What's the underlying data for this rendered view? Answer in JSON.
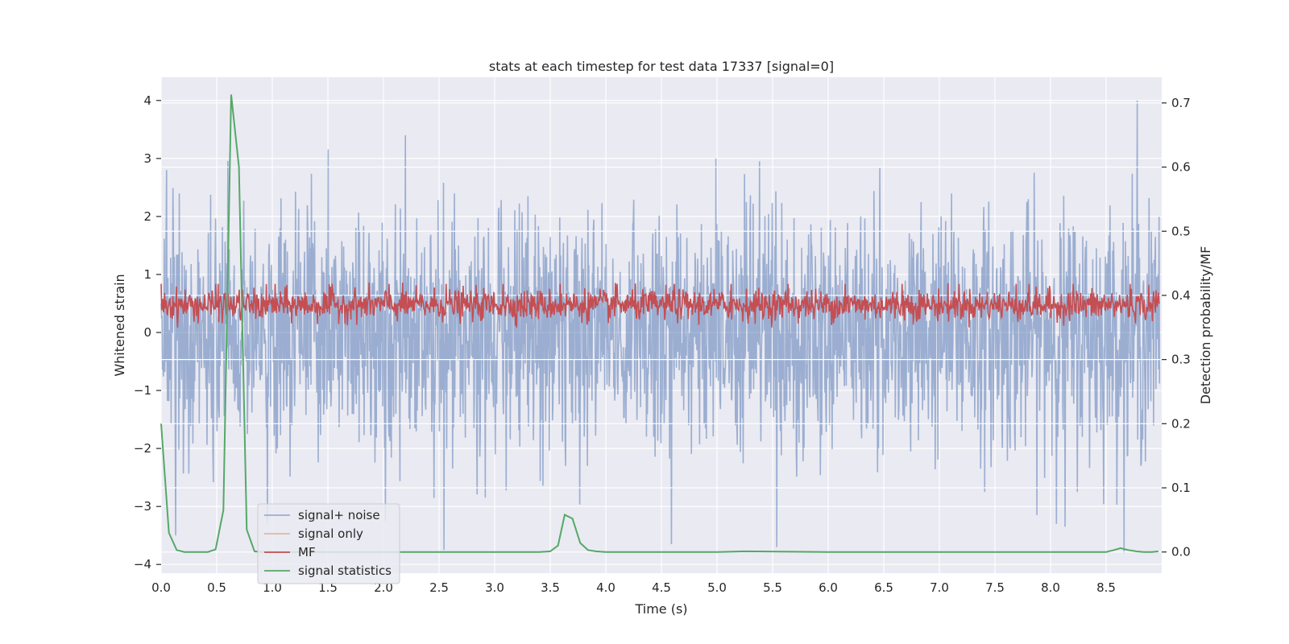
{
  "chart_data": {
    "type": "line",
    "title": "stats at each timestep for test data 17337 [signal=0]",
    "xlabel": "Time (s)",
    "ylabel": "Whitened strain",
    "y2label": "Detection probability/MF",
    "xlim": [
      0,
      9.0
    ],
    "ylim": [
      -4.15,
      4.4
    ],
    "y2lim": [
      -0.033,
      0.74
    ],
    "xticks": [
      0.0,
      0.5,
      1.0,
      1.5,
      2.0,
      2.5,
      3.0,
      3.5,
      4.0,
      4.5,
      5.0,
      5.5,
      6.0,
      6.5,
      7.0,
      7.5,
      8.0,
      8.5
    ],
    "xtick_labels": [
      "0.0",
      "0.5",
      "1.0",
      "1.5",
      "2.0",
      "2.5",
      "3.0",
      "3.5",
      "4.0",
      "4.5",
      "5.0",
      "5.5",
      "6.0",
      "6.5",
      "7.0",
      "7.5",
      "8.0",
      "8.5"
    ],
    "yticks": [
      4,
      3,
      2,
      1,
      0,
      -1,
      -2,
      -3,
      -4
    ],
    "ytick_labels": [
      "4",
      "3",
      "2",
      "1",
      "0",
      "−1",
      "−2",
      "−3",
      "−4"
    ],
    "y2ticks": [
      0.7,
      0.6,
      0.5,
      0.4,
      0.3,
      0.2,
      0.1,
      0.0
    ],
    "y2tick_labels": [
      "0.7",
      "0.6",
      "0.5",
      "0.4",
      "0.3",
      "0.2",
      "0.1",
      "0.0"
    ],
    "legend_location": "lower-left",
    "grid": true,
    "series": [
      {
        "name": "signal+ noise",
        "axis": "left",
        "color": "#4c72b0",
        "kind": "noise",
        "baseline_band": [
          -1.55,
          1.55
        ],
        "approx_range": [
          -3.8,
          4.0
        ],
        "note_peaks": [
          [
            0.05,
            2.8
          ],
          [
            2.2,
            3.4
          ],
          [
            5.0,
            3.0
          ],
          [
            8.8,
            4.0
          ]
        ],
        "note_troughs": [
          [
            0.13,
            -3.5
          ],
          [
            2.55,
            -3.75
          ],
          [
            4.6,
            -3.65
          ],
          [
            5.55,
            -3.7
          ],
          [
            8.15,
            -3.35
          ]
        ]
      },
      {
        "name": "signal only",
        "axis": "left",
        "color": "#dd8452",
        "kind": "empty",
        "values": []
      },
      {
        "name": "MF",
        "axis": "right",
        "color": "#c44e52",
        "kind": "band",
        "approx_range": [
          0.35,
          0.42
        ],
        "approx_mean": 0.385
      },
      {
        "name": "signal statistics",
        "axis": "right",
        "color": "#55a868",
        "kind": "line",
        "x": [
          0.0,
          0.07,
          0.14,
          0.21,
          0.28,
          0.35,
          0.42,
          0.49,
          0.56,
          0.63,
          0.7,
          0.77,
          0.84,
          0.91,
          1.0,
          1.5,
          2.0,
          2.5,
          3.0,
          3.4,
          3.5,
          3.57,
          3.63,
          3.7,
          3.77,
          3.84,
          3.91,
          4.0,
          5.0,
          5.25,
          6.0,
          7.0,
          8.0,
          8.5,
          8.57,
          8.63,
          8.7,
          8.77,
          8.84,
          8.91,
          8.97
        ],
        "y": [
          0.2,
          0.03,
          0.003,
          0.0,
          0.0,
          0.0,
          0.0,
          0.004,
          0.065,
          0.713,
          0.6,
          0.035,
          0.001,
          0.0,
          0.0,
          0.0,
          0.0,
          0.0,
          0.0,
          0.0,
          0.001,
          0.01,
          0.058,
          0.052,
          0.014,
          0.003,
          0.001,
          0.0,
          0.0,
          0.001,
          0.0,
          0.0,
          0.0,
          0.0,
          0.003,
          0.006,
          0.003,
          0.001,
          0.0,
          0.0,
          0.001
        ]
      }
    ]
  }
}
